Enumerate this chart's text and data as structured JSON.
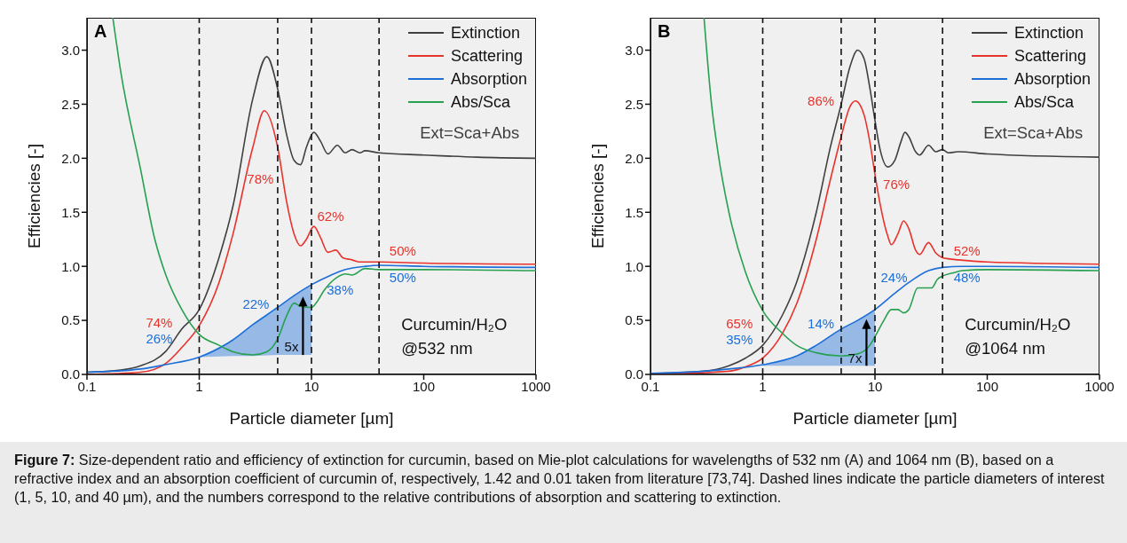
{
  "chart_data": [
    {
      "type": "line",
      "title": "A",
      "xlabel": "Particle diameter [µm]",
      "ylabel": "Efficiencies [-]",
      "log": "x",
      "xlim": [
        0.1,
        1000
      ],
      "xticks": [
        0.1,
        1,
        10,
        100,
        1000
      ],
      "ylim": [
        0,
        3.3
      ],
      "yticks": [
        {
          "value": 0,
          "label": "0.0"
        },
        {
          "value": 0.5,
          "label": "0.5"
        },
        {
          "value": 1,
          "label": "1.0"
        },
        {
          "value": 1.5,
          "label": "1.5"
        },
        {
          "value": 2,
          "label": "2.0"
        },
        {
          "value": 2.5,
          "label": "2.5"
        },
        {
          "value": 3,
          "label": "3.0"
        }
      ],
      "legend": "top right",
      "line_style": "solid",
      "series": [
        {
          "name": "Extinction",
          "color": "#404040",
          "x": [
            0.1,
            0.2,
            0.3,
            0.5,
            0.7,
            1,
            1.5,
            2,
            3,
            4,
            5,
            6,
            7,
            8,
            9,
            10.5,
            12,
            14,
            17,
            20,
            23,
            27,
            30,
            40,
            100,
            300,
            1000
          ],
          "values": [
            0.02,
            0.04,
            0.08,
            0.21,
            0.42,
            0.6,
            1.08,
            1.56,
            2.55,
            2.94,
            2.64,
            2.22,
            1.98,
            1.94,
            2.1,
            2.24,
            2.16,
            2.04,
            2.12,
            2.05,
            2.08,
            2.05,
            2.07,
            2.05,
            2.03,
            2.01,
            2.0
          ]
        },
        {
          "name": "Scattering",
          "color": "#e8322c",
          "x": [
            0.1,
            0.3,
            0.5,
            0.7,
            1,
            1.5,
            2,
            3,
            3.8,
            5,
            6,
            7,
            8,
            9,
            10.5,
            12,
            14,
            16.5,
            19,
            23,
            27,
            40,
            100,
            1000
          ],
          "values": [
            0.0,
            0.02,
            0.1,
            0.25,
            0.45,
            0.85,
            1.3,
            2.1,
            2.44,
            2.1,
            1.6,
            1.3,
            1.19,
            1.25,
            1.37,
            1.27,
            1.13,
            1.15,
            1.08,
            1.06,
            1.04,
            1.04,
            1.03,
            1.02
          ]
        },
        {
          "name": "Absorption",
          "color": "#1c6ed8",
          "x": [
            0.1,
            0.3,
            0.5,
            1,
            2,
            3,
            5,
            7,
            10,
            15,
            20,
            30,
            40,
            100,
            1000
          ],
          "values": [
            0.02,
            0.05,
            0.09,
            0.16,
            0.32,
            0.46,
            0.62,
            0.73,
            0.83,
            0.92,
            0.97,
            1.0,
            1.01,
            1.0,
            0.99
          ],
          "lower": [
            null,
            null,
            null,
            0.16,
            0.17,
            0.17,
            0.18,
            0.18,
            0.18,
            null,
            null,
            null,
            null,
            null,
            null
          ],
          "upper": [
            null,
            null,
            null,
            0.16,
            0.32,
            0.46,
            0.62,
            0.73,
            0.83,
            null,
            null,
            null,
            null,
            null,
            null
          ]
        },
        {
          "name": "Abs/Sca",
          "color": "#27a050",
          "x": [
            0.17,
            0.2,
            0.3,
            0.4,
            0.5,
            0.7,
            1,
            1.5,
            2,
            3,
            4,
            5,
            6,
            7,
            8,
            10,
            11,
            13,
            17,
            20,
            23,
            30,
            40,
            100,
            1000
          ],
          "values": [
            3.3,
            2.8,
            1.9,
            1.26,
            0.93,
            0.6,
            0.37,
            0.27,
            0.21,
            0.18,
            0.21,
            0.33,
            0.54,
            0.66,
            0.63,
            0.62,
            0.66,
            0.78,
            0.9,
            0.93,
            0.92,
            0.98,
            0.97,
            0.97,
            0.96
          ]
        }
      ],
      "ref_lines": [
        {
          "axis": "x",
          "value": 1,
          "color": "#111111",
          "line_style": "dashed"
        },
        {
          "axis": "x",
          "value": 5,
          "color": "#111111",
          "line_style": "dashed"
        },
        {
          "axis": "x",
          "value": 10,
          "color": "#111111",
          "line_style": "dashed"
        },
        {
          "axis": "x",
          "value": 40,
          "color": "#111111",
          "line_style": "dashed"
        }
      ],
      "annotations": [
        "Ext=Sca+Abs",
        "Curcumin/H₂O",
        "@532 nm",
        "74%",
        "26%",
        "78%",
        "22%",
        "62%",
        "38%",
        "50%",
        "50%",
        {
          "text": "5x",
          "x": 8.4,
          "y": 0.18
        }
      ]
    },
    {
      "type": "line",
      "title": "B",
      "xlabel": "Particle diameter [µm]",
      "ylabel": "Efficiencies [-]",
      "log": "x",
      "xlim": [
        0.1,
        1000
      ],
      "xticks": [
        0.1,
        1,
        10,
        100,
        1000
      ],
      "ylim": [
        0,
        3.3
      ],
      "yticks": [
        {
          "value": 0,
          "label": "0.0"
        },
        {
          "value": 0.5,
          "label": "0.5"
        },
        {
          "value": 1,
          "label": "1.0"
        },
        {
          "value": 1.5,
          "label": "1.5"
        },
        {
          "value": 2,
          "label": "2.0"
        },
        {
          "value": 2.5,
          "label": "2.5"
        },
        {
          "value": 3,
          "label": "3.0"
        }
      ],
      "legend": "top right",
      "line_style": "solid",
      "series": [
        {
          "name": "Extinction",
          "color": "#404040",
          "x": [
            0.1,
            0.3,
            0.5,
            0.7,
            1,
            1.5,
            2,
            3,
            4,
            5,
            6,
            7,
            8,
            9,
            10,
            11,
            13,
            15,
            17,
            18.5,
            20,
            23,
            25,
            30,
            35,
            40,
            45,
            55,
            100,
            1000
          ],
          "values": [
            0.01,
            0.03,
            0.08,
            0.15,
            0.27,
            0.55,
            0.85,
            1.5,
            2.1,
            2.5,
            2.85,
            3.0,
            2.92,
            2.65,
            2.35,
            2.1,
            1.92,
            1.98,
            2.15,
            2.24,
            2.2,
            2.06,
            2.03,
            2.12,
            2.06,
            2.08,
            2.05,
            2.06,
            2.04,
            2.01
          ]
        },
        {
          "name": "Scattering",
          "color": "#e8322c",
          "x": [
            0.1,
            0.5,
            0.7,
            1,
            1.5,
            2,
            3,
            4,
            5,
            6,
            6.7,
            8,
            9,
            10,
            11,
            13,
            14,
            16,
            18,
            20,
            23,
            25,
            30,
            35,
            40,
            45,
            55,
            100,
            1000
          ],
          "values": [
            0.0,
            0.03,
            0.07,
            0.15,
            0.38,
            0.65,
            1.25,
            1.8,
            2.2,
            2.48,
            2.53,
            2.4,
            2.15,
            1.85,
            1.6,
            1.28,
            1.2,
            1.3,
            1.42,
            1.35,
            1.15,
            1.11,
            1.22,
            1.12,
            1.08,
            1.07,
            1.06,
            1.04,
            1.02
          ]
        },
        {
          "name": "Absorption",
          "color": "#1c6ed8",
          "x": [
            0.1,
            0.3,
            0.5,
            1,
            2,
            3,
            5,
            7,
            10,
            15,
            20,
            30,
            40,
            60,
            100,
            1000
          ],
          "values": [
            0.01,
            0.03,
            0.05,
            0.09,
            0.17,
            0.27,
            0.42,
            0.5,
            0.6,
            0.75,
            0.85,
            0.96,
            0.99,
            1.0,
            1.0,
            0.99
          ],
          "lower": [
            null,
            null,
            null,
            0.08,
            0.08,
            0.08,
            0.08,
            0.08,
            0.08,
            null,
            null,
            null,
            null,
            null,
            null,
            null
          ],
          "upper": [
            null,
            null,
            null,
            0.09,
            0.17,
            0.27,
            0.42,
            0.5,
            0.6,
            null,
            null,
            null,
            null,
            null,
            null,
            null
          ]
        },
        {
          "name": "Abs/Sca",
          "color": "#27a050",
          "x": [
            0.3,
            0.35,
            0.4,
            0.5,
            0.7,
            1,
            1.5,
            2,
            3,
            5,
            7,
            9,
            10,
            12,
            14,
            16,
            18,
            20,
            24,
            28,
            32,
            36,
            40,
            50,
            60,
            100,
            1000
          ],
          "values": [
            3.3,
            2.5,
            2.05,
            1.5,
            0.95,
            0.59,
            0.38,
            0.27,
            0.2,
            0.17,
            0.19,
            0.27,
            0.35,
            0.5,
            0.6,
            0.6,
            0.57,
            0.6,
            0.8,
            0.8,
            0.8,
            0.88,
            0.91,
            0.94,
            0.96,
            0.97,
            0.96
          ]
        }
      ],
      "ref_lines": [
        {
          "axis": "x",
          "value": 1,
          "color": "#111111",
          "line_style": "dashed"
        },
        {
          "axis": "x",
          "value": 5,
          "color": "#111111",
          "line_style": "dashed"
        },
        {
          "axis": "x",
          "value": 10,
          "color": "#111111",
          "line_style": "dashed"
        },
        {
          "axis": "x",
          "value": 40,
          "color": "#111111",
          "line_style": "dashed"
        }
      ],
      "annotations": [
        "Ext=Sca+Abs",
        "Curcumin/H₂O",
        "@1064 nm",
        "Figure 7: Size-dependent ratio and efficiency of extinction for curcumin, based on Mie-plot calculations for wavelengths of 532 nm (A) and 1064 nm (B), based on a refractive index and an absorption coefficient of curcumin of, respectively, 1.42 and 0.01 taken from literature [73,74]. Dashed lines indicate the particle diameters of interest (1, 5, 10, and 40 µm), and the numbers correspond to the relative contributions of absorption and scattering to extinction.",
        "65%",
        "35%",
        "86%",
        "14%",
        "76%",
        "24%",
        "52%",
        "48%",
        {
          "text": "7x",
          "x": 8.4,
          "y": 0.08
        }
      ]
    }
  ]
}
